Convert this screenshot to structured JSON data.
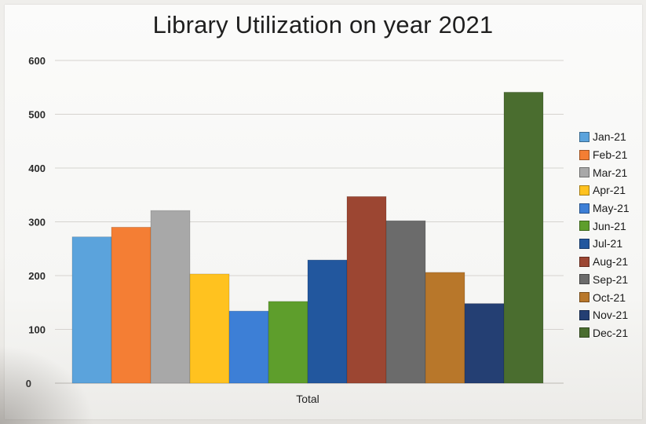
{
  "chart_data": {
    "type": "bar",
    "title": "Library Utilization on year 2021",
    "xlabel": "",
    "ylabel": "",
    "categories": [
      "Total"
    ],
    "ylim": [
      0,
      600
    ],
    "yticks": [
      0,
      100,
      200,
      300,
      400,
      500,
      600
    ],
    "grid": true,
    "legend_position": "right",
    "series": [
      {
        "name": "Jan-21",
        "values": [
          272
        ],
        "color": "#5ba3dc"
      },
      {
        "name": "Feb-21",
        "values": [
          290
        ],
        "color": "#f47e34"
      },
      {
        "name": "Mar-21",
        "values": [
          321
        ],
        "color": "#a8a8a8"
      },
      {
        "name": "Apr-21",
        "values": [
          203
        ],
        "color": "#ffc21f"
      },
      {
        "name": "May-21",
        "values": [
          134
        ],
        "color": "#3d7fd6"
      },
      {
        "name": "Jun-21",
        "values": [
          152
        ],
        "color": "#5e9e2c"
      },
      {
        "name": "Jul-21",
        "values": [
          229
        ],
        "color": "#22579e"
      },
      {
        "name": "Aug-21",
        "values": [
          347
        ],
        "color": "#9c4632"
      },
      {
        "name": "Sep-21",
        "values": [
          302
        ],
        "color": "#6b6b6b"
      },
      {
        "name": "Oct-21",
        "values": [
          206
        ],
        "color": "#b8772a"
      },
      {
        "name": "Nov-21",
        "values": [
          148
        ],
        "color": "#243f73"
      },
      {
        "name": "Dec-21",
        "values": [
          541
        ],
        "color": "#4a6d2f"
      }
    ]
  }
}
